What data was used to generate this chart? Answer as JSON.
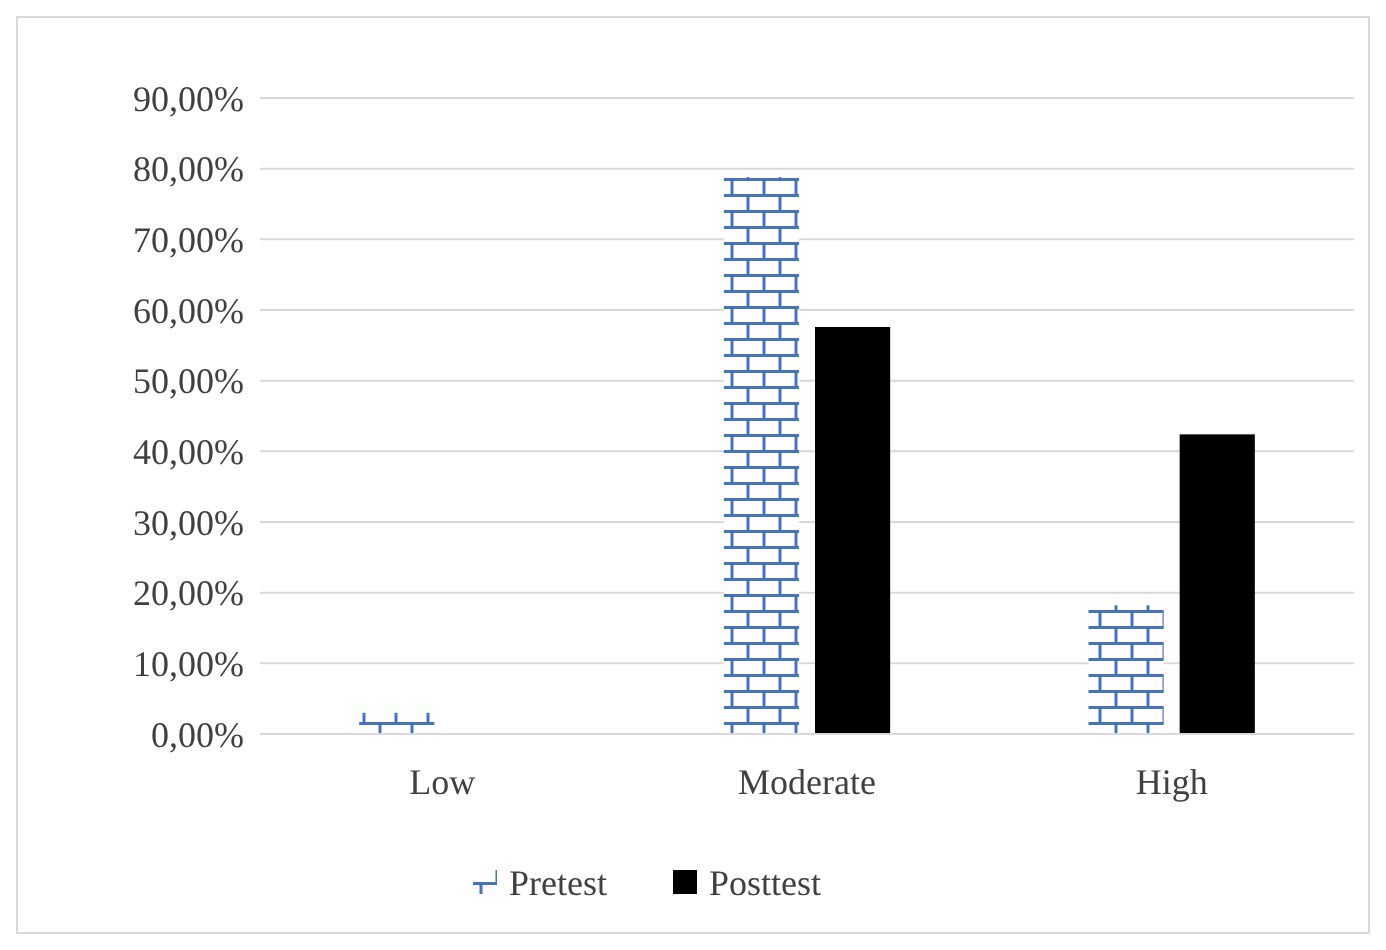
{
  "chart_data": {
    "type": "bar",
    "categories": [
      "Low",
      "Moderate",
      "High"
    ],
    "series": [
      {
        "name": "Pretest",
        "color": "#4472c4",
        "values": [
          3,
          78.8,
          18.2
        ]
      },
      {
        "name": "Posttest",
        "color": "#000000",
        "values": [
          0,
          57.6,
          42.4
        ]
      }
    ],
    "ylim": [
      0,
      90
    ],
    "yticks": [
      {
        "value": 0,
        "label": "0,00%"
      },
      {
        "value": 10,
        "label": "10,00%"
      },
      {
        "value": 20,
        "label": "20,00%"
      },
      {
        "value": 30,
        "label": "30,00%"
      },
      {
        "value": 40,
        "label": "40,00%"
      },
      {
        "value": 50,
        "label": "50,00%"
      },
      {
        "value": 60,
        "label": "60,00%"
      },
      {
        "value": 70,
        "label": "70,00%"
      },
      {
        "value": 80,
        "label": "80,00%"
      },
      {
        "value": 90,
        "label": "90,00%"
      }
    ],
    "grid": "y",
    "legend": "bottom"
  }
}
